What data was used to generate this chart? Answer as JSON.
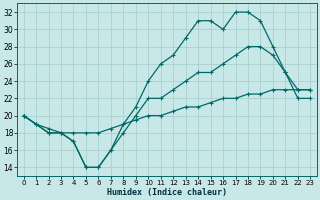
{
  "xlabel": "Humidex (Indice chaleur)",
  "xlim": [
    -0.5,
    23.5
  ],
  "ylim": [
    13,
    33
  ],
  "yticks": [
    14,
    16,
    18,
    20,
    22,
    24,
    26,
    28,
    30,
    32
  ],
  "xticks": [
    0,
    1,
    2,
    3,
    4,
    5,
    6,
    7,
    8,
    9,
    10,
    11,
    12,
    13,
    14,
    15,
    16,
    17,
    18,
    19,
    20,
    21,
    22,
    23
  ],
  "bg_color": "#c8e8e8",
  "grid_color": "#a8d0d0",
  "line_color": "#006868",
  "line1_y": [
    20,
    19,
    18,
    18,
    17,
    14,
    14,
    16,
    19,
    21,
    24,
    26,
    27,
    29,
    31,
    31,
    30,
    32,
    32,
    31,
    28,
    25,
    23,
    23
  ],
  "line2_y": [
    20,
    19,
    18,
    18,
    17,
    14,
    14,
    16,
    18,
    20,
    22,
    22,
    23,
    24,
    25,
    25,
    26,
    27,
    28,
    28,
    27,
    25,
    22,
    22
  ],
  "line3_y": [
    20,
    19,
    18.5,
    18,
    18,
    18,
    18,
    18.5,
    19,
    19.5,
    20,
    20,
    20.5,
    21,
    21,
    21.5,
    22,
    22,
    22.5,
    22.5,
    23,
    23,
    23,
    23
  ]
}
